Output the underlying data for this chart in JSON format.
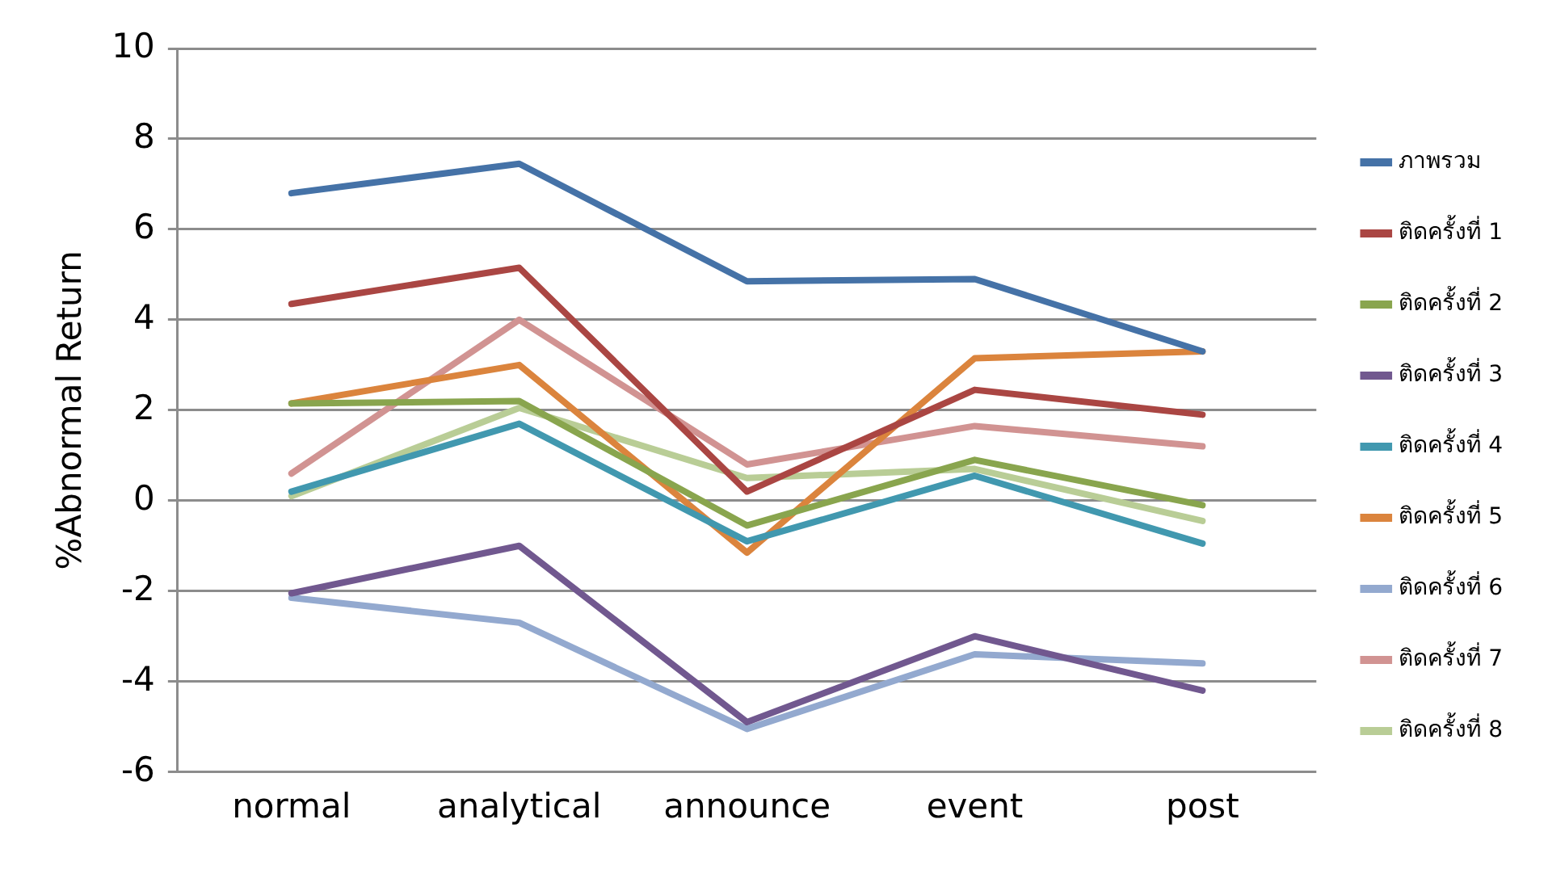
{
  "chart_data": {
    "type": "line",
    "ylabel": "%Abnormal Return",
    "categories": [
      "normal",
      "analytical",
      "announce",
      "event",
      "post"
    ],
    "ylim": [
      -6,
      10
    ],
    "yticks": [
      -6,
      -4,
      -2,
      0,
      2,
      4,
      6,
      8,
      10
    ],
    "grid": "y",
    "legend": "right",
    "marker": "none",
    "line_style": "solid",
    "series": [
      {
        "name": "ภาพรวม",
        "color": "#4572a7",
        "values": [
          6.8,
          7.45,
          4.85,
          4.9,
          3.3
        ]
      },
      {
        "name": "ติดครั้งที่ 1",
        "color": "#aa4643",
        "values": [
          4.35,
          5.15,
          0.2,
          2.45,
          1.9
        ]
      },
      {
        "name": "ติดครั้งที่ 2",
        "color": "#89a54e",
        "values": [
          2.15,
          2.2,
          -0.55,
          0.9,
          -0.1
        ]
      },
      {
        "name": "ติดครั้งที่ 3",
        "color": "#71588f",
        "values": [
          -2.05,
          -1.0,
          -4.9,
          -3.0,
          -4.2
        ]
      },
      {
        "name": "ติดครั้งที่ 4",
        "color": "#4198af",
        "values": [
          0.2,
          1.7,
          -0.9,
          0.55,
          -0.95
        ]
      },
      {
        "name": "ติดครั้งที่ 5",
        "color": "#db843d",
        "values": [
          2.15,
          3.0,
          -1.15,
          3.15,
          3.3
        ]
      },
      {
        "name": "ติดครั้งที่ 6",
        "color": "#93a9cf",
        "values": [
          -2.15,
          -2.7,
          -5.05,
          -3.4,
          -3.6
        ]
      },
      {
        "name": "ติดครั้งที่ 7",
        "color": "#d19392",
        "values": [
          0.6,
          4.0,
          0.8,
          1.65,
          1.2
        ]
      },
      {
        "name": "ติดครั้งที่ 8",
        "color": "#b9cd96",
        "values": [
          0.1,
          2.05,
          0.5,
          0.7,
          -0.45
        ]
      }
    ]
  }
}
